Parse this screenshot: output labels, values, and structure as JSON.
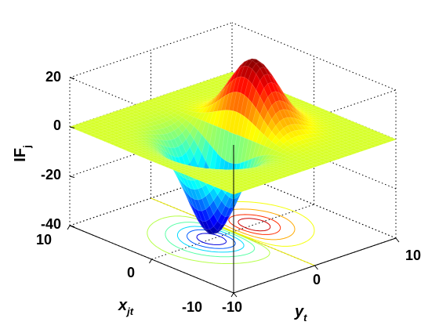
{
  "chart_data": {
    "type": "surface",
    "zlabel": "IF",
    "zlabel_sub": "j",
    "xlabel": "x",
    "xlabel_sub": "jt",
    "ylabel": "y",
    "ylabel_sub": "t",
    "xlim": [
      -10,
      10
    ],
    "ylim": [
      -10,
      10
    ],
    "zlim": [
      -40,
      20
    ],
    "zticks": [
      "20",
      "0",
      "-20",
      "-40"
    ],
    "xticks": [
      "-10",
      "0",
      "10"
    ],
    "yticks": [
      "-10",
      "0",
      "10"
    ],
    "grid": true,
    "colormap": "jet",
    "contour_projection": true,
    "surface_extrema": {
      "max": 27,
      "min": -38
    }
  }
}
